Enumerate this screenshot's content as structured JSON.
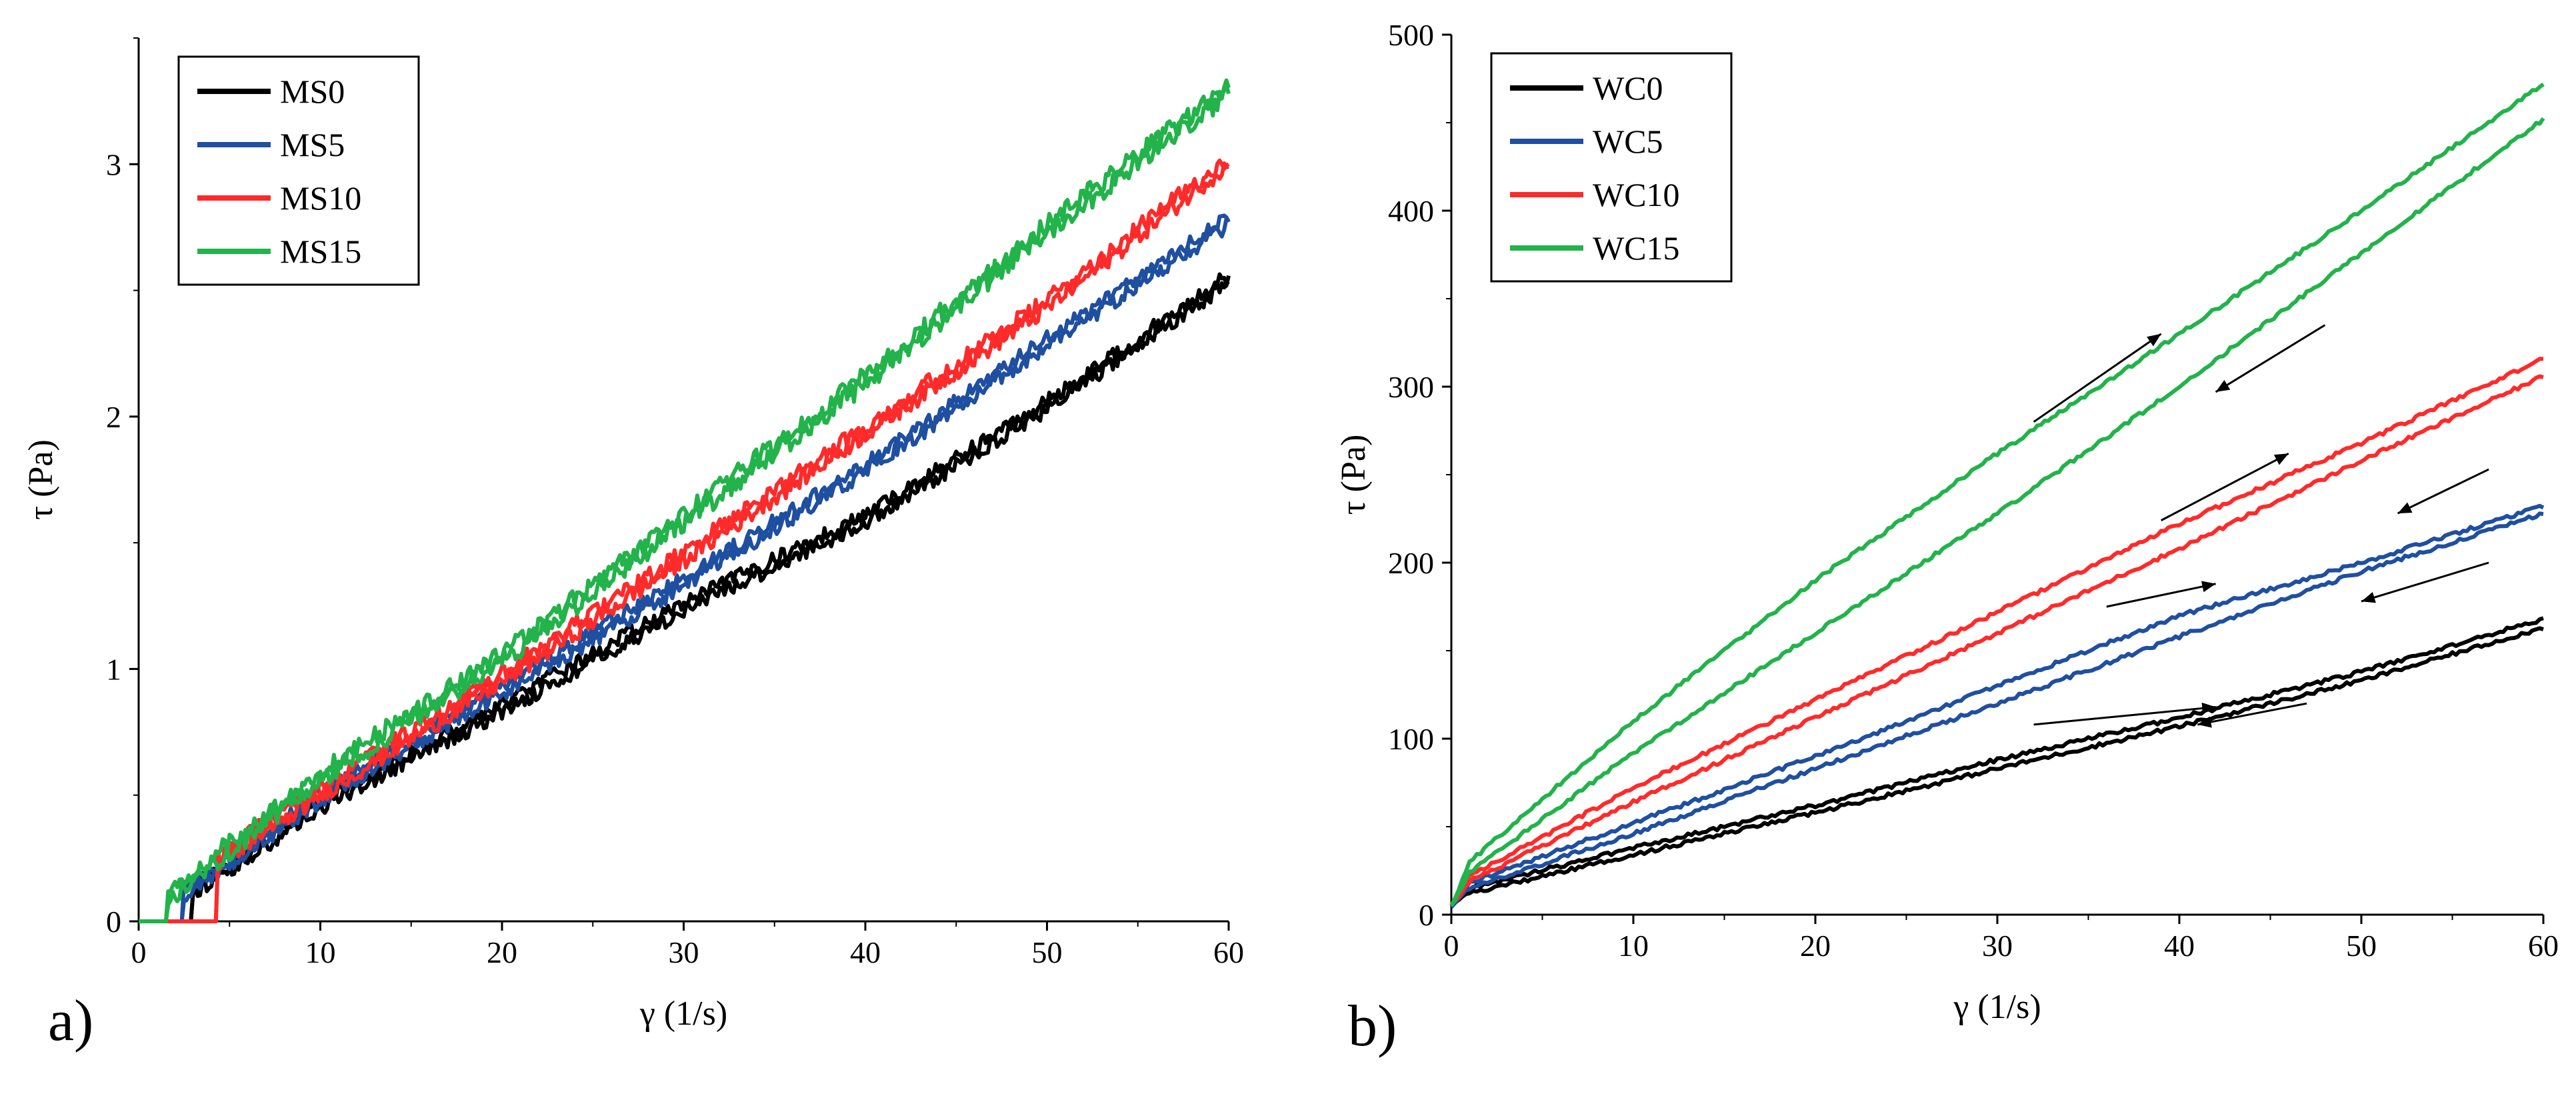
{
  "chart_data": [
    {
      "type": "line",
      "panel_label": "a)",
      "xlabel": "γ (1/s)",
      "ylabel": "τ (Pa)",
      "xlim": [
        0,
        60
      ],
      "ylim": [
        0,
        3.5
      ],
      "x_ticks": [
        0,
        10,
        20,
        30,
        40,
        50,
        60
      ],
      "y_ticks": [
        0,
        1,
        2,
        3
      ],
      "grid": false,
      "legend_position": "top-left",
      "series": [
        {
          "name": "MS0",
          "color": "#000000",
          "onset": 3.0,
          "x": [
            0,
            5,
            10,
            20,
            30,
            40,
            50,
            60
          ],
          "y": [
            0,
            0.22,
            0.47,
            0.85,
            1.25,
            1.6,
            2.05,
            2.55
          ],
          "noise": 0.03
        },
        {
          "name": "MS5",
          "color": "#1f4fa0",
          "onset": 2.5,
          "x": [
            0,
            5,
            10,
            20,
            30,
            40,
            50,
            60
          ],
          "y": [
            0,
            0.24,
            0.5,
            0.92,
            1.35,
            1.8,
            2.3,
            2.78
          ],
          "noise": 0.03
        },
        {
          "name": "MS10",
          "color": "#ff2a2a",
          "onset": 4.3,
          "x": [
            0,
            5,
            10,
            20,
            30,
            40,
            50,
            60
          ],
          "y": [
            0,
            0.28,
            0.52,
            0.97,
            1.45,
            1.95,
            2.45,
            3.02
          ],
          "noise": 0.035
        },
        {
          "name": "MS15",
          "color": "#22b34a",
          "onset": 1.6,
          "x": [
            0,
            5,
            10,
            20,
            30,
            40,
            50,
            60
          ],
          "y": [
            0,
            0.3,
            0.58,
            1.05,
            1.6,
            2.15,
            2.75,
            3.3
          ],
          "noise": 0.04
        }
      ]
    },
    {
      "type": "line",
      "panel_label": "b)",
      "xlabel": "γ (1/s)",
      "ylabel": "τ (Pa)",
      "xlim": [
        0,
        60
      ],
      "ylim": [
        0,
        500
      ],
      "x_ticks": [
        0,
        10,
        20,
        30,
        40,
        50,
        60
      ],
      "y_ticks": [
        0,
        100,
        200,
        300,
        400,
        500
      ],
      "grid": false,
      "legend_position": "top-left",
      "series": [
        {
          "name": "WC0",
          "color": "#000000",
          "x": [
            0,
            1,
            10,
            20,
            30,
            40,
            50,
            60
          ],
          "y_up": [
            5,
            15,
            38,
            62,
            88,
            112,
            138,
            168
          ],
          "y_down": [
            5,
            12,
            34,
            58,
            83,
            107,
            133,
            163
          ]
        },
        {
          "name": "WC5",
          "color": "#1f4fa0",
          "x": [
            0,
            1,
            10,
            20,
            30,
            40,
            50,
            60
          ],
          "y_up": [
            5,
            18,
            52,
            90,
            130,
            170,
            200,
            232
          ],
          "y_down": [
            5,
            15,
            46,
            83,
            120,
            158,
            195,
            228
          ]
        },
        {
          "name": "WC10",
          "color": "#ff2a2a",
          "x": [
            0,
            1,
            10,
            20,
            30,
            40,
            50,
            60
          ],
          "y_up": [
            5,
            22,
            72,
            122,
            172,
            222,
            268,
            316
          ],
          "y_down": [
            5,
            19,
            64,
            112,
            160,
            208,
            258,
            306
          ]
        },
        {
          "name": "WC15",
          "color": "#22b34a",
          "x": [
            0,
            1,
            10,
            20,
            30,
            40,
            50,
            60
          ],
          "y_up": [
            5,
            30,
            110,
            190,
            262,
            330,
            400,
            472
          ],
          "y_down": [
            5,
            24,
            92,
            160,
            228,
            300,
            376,
            452
          ]
        }
      ]
    }
  ]
}
